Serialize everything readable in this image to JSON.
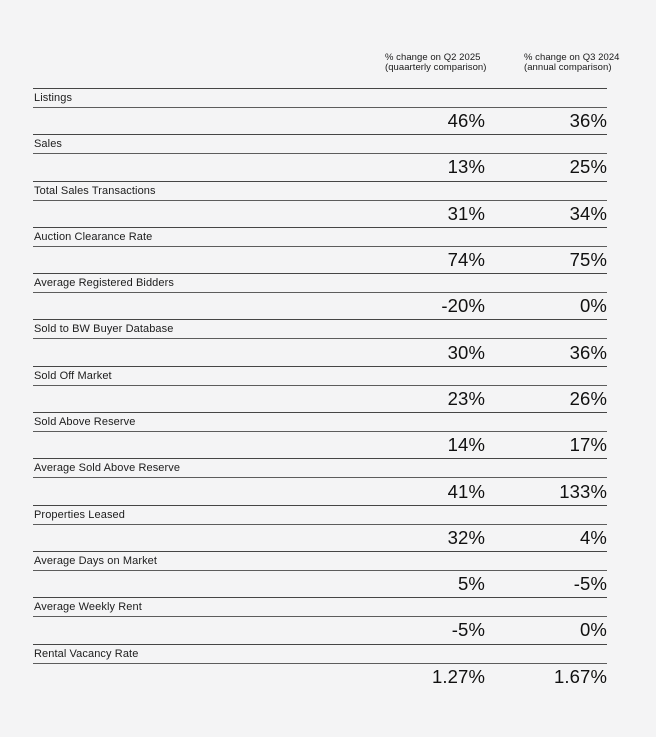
{
  "page": {
    "background_color": "#f4f4f5",
    "text_color": "#151515",
    "rule_color": "#454545"
  },
  "header": {
    "quarterly": {
      "line1": "% change on Q2 2025",
      "line2": "(quaarterly comparison)"
    },
    "annual": {
      "line1": "% change on Q3 2024",
      "line2": "(annual comparison)"
    }
  },
  "table": {
    "rows": [
      {
        "label": "Listings",
        "quarterly": "46%",
        "annual": "36%"
      },
      {
        "label": "Sales",
        "quarterly": "13%",
        "annual": "25%"
      },
      {
        "label": "Total Sales Transactions",
        "quarterly": "31%",
        "annual": "34%"
      },
      {
        "label": "Auction Clearance Rate",
        "quarterly": "74%",
        "annual": "75%"
      },
      {
        "label": "Average Registered Bidders",
        "quarterly": "-20%",
        "annual": "0%"
      },
      {
        "label": "Sold to BW Buyer Database",
        "quarterly": "30%",
        "annual": "36%"
      },
      {
        "label": "Sold Off Market",
        "quarterly": "23%",
        "annual": "26%"
      },
      {
        "label": "Sold Above Reserve",
        "quarterly": "14%",
        "annual": "17%"
      },
      {
        "label": "Average Sold Above Reserve",
        "quarterly": "41%",
        "annual": "133%"
      },
      {
        "label": "Properties Leased",
        "quarterly": "32%",
        "annual": "4%"
      },
      {
        "label": "Average Days on Market",
        "quarterly": "5%",
        "annual": "-5%"
      },
      {
        "label": "Average Weekly Rent",
        "quarterly": "-5%",
        "annual": "0%"
      },
      {
        "label": "Rental Vacancy Rate",
        "quarterly": "1.27%",
        "annual": "1.67%"
      }
    ]
  },
  "chart_data": {
    "type": "table",
    "title": "",
    "categories": [
      "Listings",
      "Sales",
      "Total Sales Transactions",
      "Auction Clearance Rate",
      "Average Registered Bidders",
      "Sold to BW Buyer Database",
      "Sold Off Market",
      "Sold Above Reserve",
      "Average Sold Above Reserve",
      "Properties Leased",
      "Average Days on Market",
      "Average Weekly Rent",
      "Rental Vacancy Rate"
    ],
    "series": [
      {
        "name": "% change on Q2 2025 (quaarterly comparison)",
        "values": [
          46,
          13,
          31,
          74,
          -20,
          30,
          23,
          14,
          41,
          32,
          5,
          -5,
          1.27
        ],
        "unit": "%"
      },
      {
        "name": "% change on Q3 2024 (annual comparison)",
        "values": [
          36,
          25,
          34,
          75,
          0,
          36,
          26,
          17,
          133,
          4,
          -5,
          0,
          1.67
        ],
        "unit": "%"
      }
    ]
  }
}
